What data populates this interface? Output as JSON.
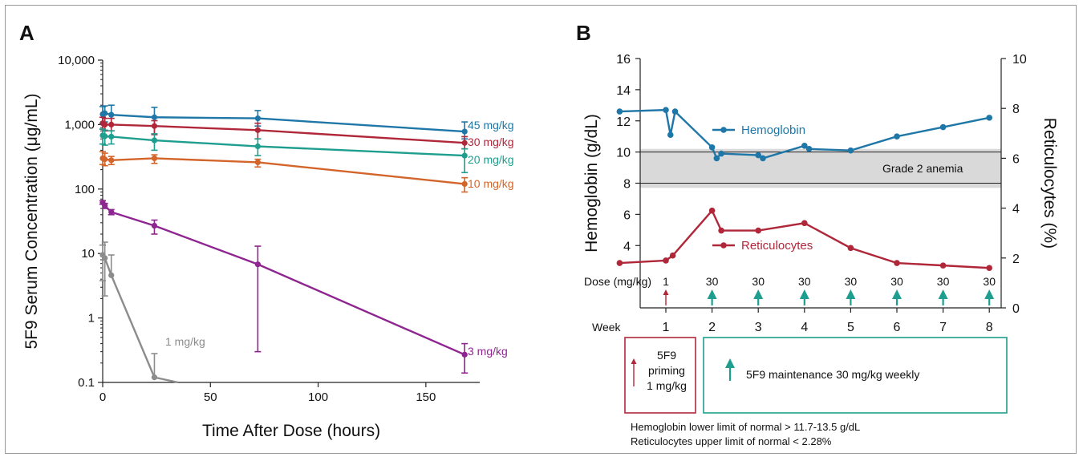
{
  "panel_a_label": "A",
  "panel_b_label": "B",
  "chart_data": [
    {
      "type": "line",
      "panel": "A",
      "xlabel": "Time After Dose (hours)",
      "ylabel": "5F9 Serum Concentration (μg/mL)",
      "yscale": "log",
      "xlim": [
        0,
        175
      ],
      "ylim": [
        0.1,
        10000
      ],
      "xticks": [
        0,
        50,
        100,
        150
      ],
      "yticks": [
        0.1,
        1,
        10,
        100,
        1000,
        10000
      ],
      "yticklabels": [
        "0.1",
        "1",
        "10",
        "100",
        "1,000",
        "10,000"
      ],
      "grid": false,
      "series": [
        {
          "name": "45 mg/kg",
          "color": "#1f77a8",
          "x": [
            0,
            1,
            4,
            24,
            72,
            168
          ],
          "y": [
            1450,
            1500,
            1420,
            1300,
            1250,
            780
          ],
          "err_low": [
            1050,
            1100,
            1000,
            700,
            950,
            600
          ],
          "err_high": [
            1900,
            1950,
            2000,
            1850,
            1650,
            1100
          ]
        },
        {
          "name": "30 mg/kg",
          "color": "#b0273a",
          "x": [
            0,
            1,
            4,
            24,
            72,
            168
          ],
          "y": [
            1050,
            1000,
            1000,
            950,
            820,
            520
          ],
          "err_low": [
            850,
            800,
            800,
            700,
            600,
            420
          ],
          "err_high": [
            1300,
            1250,
            1250,
            1150,
            1050,
            650
          ]
        },
        {
          "name": "20 mg/kg",
          "color": "#1e9e8e",
          "x": [
            0,
            1,
            4,
            24,
            72,
            168
          ],
          "y": [
            680,
            660,
            650,
            570,
            460,
            330
          ],
          "err_low": [
            500,
            480,
            500,
            400,
            330,
            180
          ],
          "err_high": [
            850,
            820,
            800,
            720,
            600,
            420
          ]
        },
        {
          "name": "10 mg/kg",
          "color": "#d4652a",
          "x": [
            0,
            1,
            4,
            24,
            72,
            168
          ],
          "y": [
            300,
            290,
            280,
            300,
            260,
            120
          ],
          "err_low": [
            240,
            230,
            240,
            250,
            220,
            90
          ],
          "err_high": [
            380,
            360,
            320,
            340,
            290,
            150
          ]
        },
        {
          "name": "3 mg/kg",
          "color": "#8e2590",
          "x": [
            0,
            1,
            4,
            24,
            72,
            168
          ],
          "y": [
            62,
            55,
            44,
            27,
            6.8,
            0.27
          ],
          "err_low": [
            58,
            50,
            40,
            20,
            0.3,
            0.14
          ],
          "err_high": [
            66,
            60,
            48,
            33,
            13,
            0.4
          ]
        },
        {
          "name": "1 mg/kg",
          "color": "#8c8c8c",
          "x": [
            0,
            1,
            4,
            24,
            35
          ],
          "y": [
            9.5,
            8.5,
            4.6,
            0.12,
            0.1
          ],
          "err_low": [
            3.8,
            2.2,
            0,
            0,
            0
          ],
          "err_high": [
            13.5,
            15,
            9.5,
            0.28,
            0
          ]
        }
      ]
    },
    {
      "type": "line",
      "panel": "B",
      "xlabel": "Week",
      "ylabel_left": "Hemoglobin (g/dL)",
      "ylabel_right": "Reticulocytes (%)",
      "xlim": [
        0,
        8.2
      ],
      "ylim_left": [
        0,
        16
      ],
      "ylim_right": [
        0,
        10
      ],
      "xticks": [
        1,
        2,
        3,
        4,
        5,
        6,
        7,
        8
      ],
      "yticks_left": [
        4,
        6,
        8,
        10,
        12,
        14,
        16
      ],
      "yticks_right": [
        0,
        2,
        4,
        6,
        8,
        10
      ],
      "band": {
        "y_low": 7.7,
        "y_high": 10.2,
        "lines": [
          8,
          10
        ],
        "label": "Grade 2 anemia"
      },
      "dose_label": "Dose (mg/kg)",
      "doses": [
        {
          "week": 1,
          "value": "1",
          "arrow": "priming"
        },
        {
          "week": 2,
          "value": "30",
          "arrow": "maintenance"
        },
        {
          "week": 3,
          "value": "30",
          "arrow": "maintenance"
        },
        {
          "week": 4,
          "value": "30",
          "arrow": "maintenance"
        },
        {
          "week": 5,
          "value": "30",
          "arrow": "maintenance"
        },
        {
          "week": 6,
          "value": "30",
          "arrow": "maintenance"
        },
        {
          "week": 7,
          "value": "30",
          "arrow": "maintenance"
        },
        {
          "week": 8,
          "value": "30",
          "arrow": "maintenance"
        }
      ],
      "series": [
        {
          "name": "Hemoglobin",
          "axis": "left",
          "color": "#1f77a8",
          "x": [
            0,
            1,
            1.1,
            1.2,
            2,
            2.1,
            2.2,
            3,
            3.1,
            4,
            4.1,
            5,
            6,
            7,
            8
          ],
          "y": [
            12.6,
            12.7,
            11.1,
            12.6,
            10.3,
            9.6,
            9.9,
            9.8,
            9.6,
            10.4,
            10.2,
            10.1,
            11.0,
            11.6,
            12.2
          ]
        },
        {
          "name": "Reticulocytes",
          "axis": "right",
          "color": "#b0273a",
          "x": [
            0,
            1,
            1.15,
            2,
            2.2,
            3,
            4,
            5,
            6,
            7,
            8
          ],
          "y": [
            1.8,
            1.9,
            2.1,
            3.9,
            3.1,
            3.1,
            3.4,
            2.4,
            1.8,
            1.7,
            1.6
          ]
        }
      ],
      "legend": {
        "priming_line1": "5F9",
        "priming_line2": "priming",
        "priming_line3": "1 mg/kg",
        "maintenance": "5F9 maintenance 30 mg/kg weekly",
        "priming_color": "#b0273a",
        "maintenance_color": "#1e9e8e"
      },
      "footnote_1": "Hemoglobin lower limit of normal > 11.7-13.5 g/dL",
      "footnote_2": "Reticulocytes upper limit of normal < 2.28%"
    }
  ]
}
